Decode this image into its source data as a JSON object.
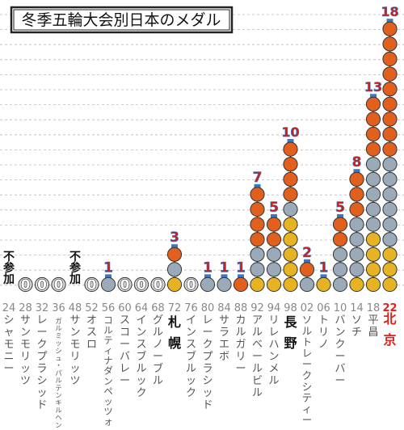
{
  "chart_data": {
    "type": "bar",
    "title": "冬季五輪大会別日本のメダル",
    "ylim": [
      0,
      19
    ],
    "grid": true,
    "medal_colors": {
      "gold": "#E6B422",
      "silver": "#9AAAB8",
      "bronze": "#E2601E"
    },
    "label_colors": {
      "normal": "#888888",
      "highlight": "#E0201A",
      "count": "#C8201A",
      "count_outline": "#3A78C2",
      "zero_fill": "#ffffff"
    },
    "games": [
      {
        "year": "24",
        "city": "シャモニー",
        "participated": false,
        "gold": 0,
        "silver": 0,
        "bronze": 0,
        "total": 0,
        "count_label": "",
        "nonpart_label": "不参加"
      },
      {
        "year": "28",
        "city": "サンモリッツ",
        "participated": true,
        "gold": 0,
        "silver": 0,
        "bronze": 0,
        "total": 0,
        "count_label": "0"
      },
      {
        "year": "32",
        "city": "レークプラシッド",
        "participated": true,
        "gold": 0,
        "silver": 0,
        "bronze": 0,
        "total": 0,
        "count_label": "0"
      },
      {
        "year": "36",
        "city": "ガルミッシュ・パルテンキルヘン",
        "participated": true,
        "gold": 0,
        "silver": 0,
        "bronze": 0,
        "total": 0,
        "count_label": "0"
      },
      {
        "year": "48",
        "city": "サンモリッツ",
        "participated": false,
        "gold": 0,
        "silver": 0,
        "bronze": 0,
        "total": 0,
        "count_label": "",
        "nonpart_label": "不参加"
      },
      {
        "year": "52",
        "city": "オスロ",
        "participated": true,
        "gold": 0,
        "silver": 0,
        "bronze": 0,
        "total": 0,
        "count_label": "0"
      },
      {
        "year": "56",
        "city": "コルティナダンペッツォ",
        "participated": true,
        "gold": 0,
        "silver": 1,
        "bronze": 0,
        "total": 1,
        "count_label": "1"
      },
      {
        "year": "60",
        "city": "スコーバレー",
        "participated": true,
        "gold": 0,
        "silver": 0,
        "bronze": 0,
        "total": 0,
        "count_label": "0"
      },
      {
        "year": "64",
        "city": "インスブルック",
        "participated": true,
        "gold": 0,
        "silver": 0,
        "bronze": 0,
        "total": 0,
        "count_label": "0"
      },
      {
        "year": "68",
        "city": "グルノーブル",
        "participated": true,
        "gold": 0,
        "silver": 0,
        "bronze": 0,
        "total": 0,
        "count_label": "0"
      },
      {
        "year": "72",
        "city": "札幌",
        "participated": true,
        "gold": 1,
        "silver": 1,
        "bronze": 1,
        "total": 3,
        "count_label": "3",
        "host": true
      },
      {
        "year": "76",
        "city": "インスブルック",
        "participated": true,
        "gold": 0,
        "silver": 0,
        "bronze": 0,
        "total": 0,
        "count_label": "0"
      },
      {
        "year": "80",
        "city": "レークプラシッド",
        "participated": true,
        "gold": 0,
        "silver": 1,
        "bronze": 0,
        "total": 1,
        "count_label": "1"
      },
      {
        "year": "84",
        "city": "サラエボ",
        "participated": true,
        "gold": 0,
        "silver": 1,
        "bronze": 0,
        "total": 1,
        "count_label": "1"
      },
      {
        "year": "88",
        "city": "カルガリー",
        "participated": true,
        "gold": 0,
        "silver": 0,
        "bronze": 1,
        "total": 1,
        "count_label": "1"
      },
      {
        "year": "92",
        "city": "アルベールビル",
        "participated": true,
        "gold": 1,
        "silver": 2,
        "bronze": 4,
        "total": 7,
        "count_label": "7"
      },
      {
        "year": "94",
        "city": "リレハンメル",
        "participated": true,
        "gold": 1,
        "silver": 2,
        "bronze": 2,
        "total": 5,
        "count_label": "5"
      },
      {
        "year": "98",
        "city": "長野",
        "participated": true,
        "gold": 5,
        "silver": 1,
        "bronze": 4,
        "total": 10,
        "count_label": "10",
        "host": true
      },
      {
        "year": "02",
        "city": "ソルトレークシティー",
        "participated": true,
        "gold": 0,
        "silver": 1,
        "bronze": 1,
        "total": 2,
        "count_label": "2"
      },
      {
        "year": "06",
        "city": "トリノ",
        "participated": true,
        "gold": 1,
        "silver": 0,
        "bronze": 0,
        "total": 1,
        "count_label": "1"
      },
      {
        "year": "10",
        "city": "バンクーバー",
        "participated": true,
        "gold": 0,
        "silver": 3,
        "bronze": 2,
        "total": 5,
        "count_label": "5"
      },
      {
        "year": "14",
        "city": "ソチ",
        "participated": true,
        "gold": 1,
        "silver": 4,
        "bronze": 3,
        "total": 8,
        "count_label": "8"
      },
      {
        "year": "18",
        "city": "平昌",
        "participated": true,
        "gold": 4,
        "silver": 5,
        "bronze": 4,
        "total": 13,
        "count_label": "13"
      },
      {
        "year": "22",
        "city": "北京",
        "participated": true,
        "gold": 3,
        "silver": 6,
        "bronze": 9,
        "total": 18,
        "count_label": "18",
        "highlight": true
      }
    ]
  }
}
